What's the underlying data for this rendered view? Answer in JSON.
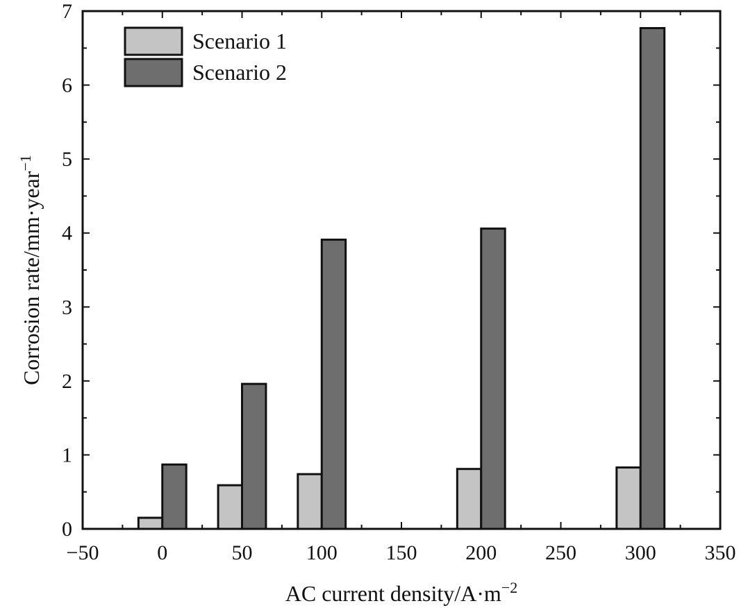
{
  "chart_data": {
    "type": "bar",
    "title": "",
    "xlabel": "AC current density/A·m",
    "xlabel_sup": "−2",
    "ylabel": "Corrosion rate/mm·year",
    "ylabel_sup": "−1",
    "xlim": [
      -50,
      350
    ],
    "ylim": [
      0,
      7
    ],
    "x_ticks": [
      -50,
      0,
      50,
      100,
      150,
      200,
      250,
      300,
      350
    ],
    "x_tick_labels": [
      "−50",
      "0",
      "50",
      "100",
      "150",
      "200",
      "250",
      "300",
      "350"
    ],
    "y_ticks": [
      0,
      1,
      2,
      3,
      4,
      5,
      6,
      7
    ],
    "y_tick_labels": [
      "0",
      "1",
      "2",
      "3",
      "4",
      "5",
      "6",
      "7"
    ],
    "x": [
      0,
      50,
      100,
      200,
      300
    ],
    "series": [
      {
        "name": "Scenario 1",
        "color": "#c4c4c4",
        "values": [
          0.15,
          0.59,
          0.74,
          0.81,
          0.83
        ]
      },
      {
        "name": "Scenario 2",
        "color": "#6e6e6f",
        "values": [
          0.87,
          1.96,
          3.91,
          4.06,
          6.77
        ]
      }
    ],
    "bar_width": 15,
    "legend": "top-left",
    "grid": false
  }
}
